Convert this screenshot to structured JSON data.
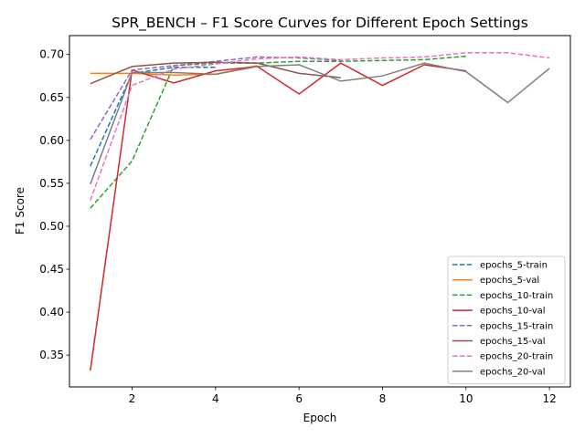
{
  "chart_data": {
    "type": "line",
    "title": "SPR_BENCH – F1 Score Curves for Different Epoch Settings",
    "xlabel": "Epoch",
    "ylabel": "F1 Score",
    "xlim": [
      0.5,
      12.5
    ],
    "ylim": [
      0.313,
      0.722
    ],
    "xticks": [
      2,
      4,
      6,
      8,
      10,
      12
    ],
    "xtick_labels": [
      "2",
      "4",
      "6",
      "8",
      "10",
      "12"
    ],
    "yticks": [
      0.35,
      0.4,
      0.45,
      0.5,
      0.55,
      0.6,
      0.65,
      0.7
    ],
    "ytick_labels": [
      "0.35",
      "0.40",
      "0.45",
      "0.50",
      "0.55",
      "0.60",
      "0.65",
      "0.70"
    ],
    "grid": false,
    "legend_position": "lower-right",
    "series": [
      {
        "name": "epochs_5-train",
        "color": "#1f77b4",
        "dash": "dashed",
        "x": [
          1,
          2,
          3,
          4
        ],
        "values": [
          0.57,
          0.678,
          0.685,
          0.685
        ]
      },
      {
        "name": "epochs_5-val",
        "color": "#ff7f0e",
        "dash": "solid",
        "x": [
          1,
          2,
          3,
          4,
          5
        ],
        "values": [
          0.678,
          0.678,
          0.676,
          0.677,
          0.687
        ]
      },
      {
        "name": "epochs_10-train",
        "color": "#2ca02c",
        "dash": "dashed",
        "x": [
          1,
          2,
          3,
          4,
          5,
          6,
          7,
          8,
          9,
          10
        ],
        "values": [
          0.521,
          0.576,
          0.687,
          0.69,
          0.69,
          0.692,
          0.692,
          0.693,
          0.694,
          0.698
        ]
      },
      {
        "name": "epochs_10-val",
        "color": "#d62728",
        "dash": "solid",
        "x": [
          1,
          2,
          3,
          4,
          5,
          6,
          7,
          8,
          9,
          10
        ],
        "values": [
          0.332,
          0.682,
          0.667,
          0.681,
          0.686,
          0.654,
          0.69,
          0.664,
          0.688,
          0.681
        ]
      },
      {
        "name": "epochs_15-train",
        "color": "#9467bd",
        "dash": "dashed",
        "x": [
          1,
          2,
          3,
          4,
          5,
          6,
          7
        ],
        "values": [
          0.601,
          0.682,
          0.687,
          0.692,
          0.697,
          0.696,
          0.693
        ]
      },
      {
        "name": "epochs_15-val",
        "color": "#8c564b",
        "dash": "solid",
        "x": [
          1,
          2,
          3,
          4,
          5,
          6,
          7
        ],
        "values": [
          0.666,
          0.686,
          0.69,
          0.691,
          0.69,
          0.678,
          0.673
        ]
      },
      {
        "name": "epochs_20-train",
        "color": "#e377c2",
        "dash": "dashed",
        "x": [
          1,
          2,
          3,
          4,
          5,
          6,
          7,
          8,
          9,
          10,
          11,
          12
        ],
        "values": [
          0.53,
          0.664,
          0.683,
          0.689,
          0.695,
          0.697,
          0.694,
          0.696,
          0.697,
          0.702,
          0.702,
          0.696
        ]
      },
      {
        "name": "epochs_20-val",
        "color": "#7f7f7f",
        "dash": "solid",
        "x": [
          1,
          2,
          3,
          4,
          5,
          6,
          7,
          8,
          9,
          10,
          11,
          12
        ],
        "values": [
          0.549,
          0.679,
          0.679,
          0.677,
          0.686,
          0.688,
          0.669,
          0.675,
          0.69,
          0.68,
          0.644,
          0.684
        ]
      }
    ]
  }
}
